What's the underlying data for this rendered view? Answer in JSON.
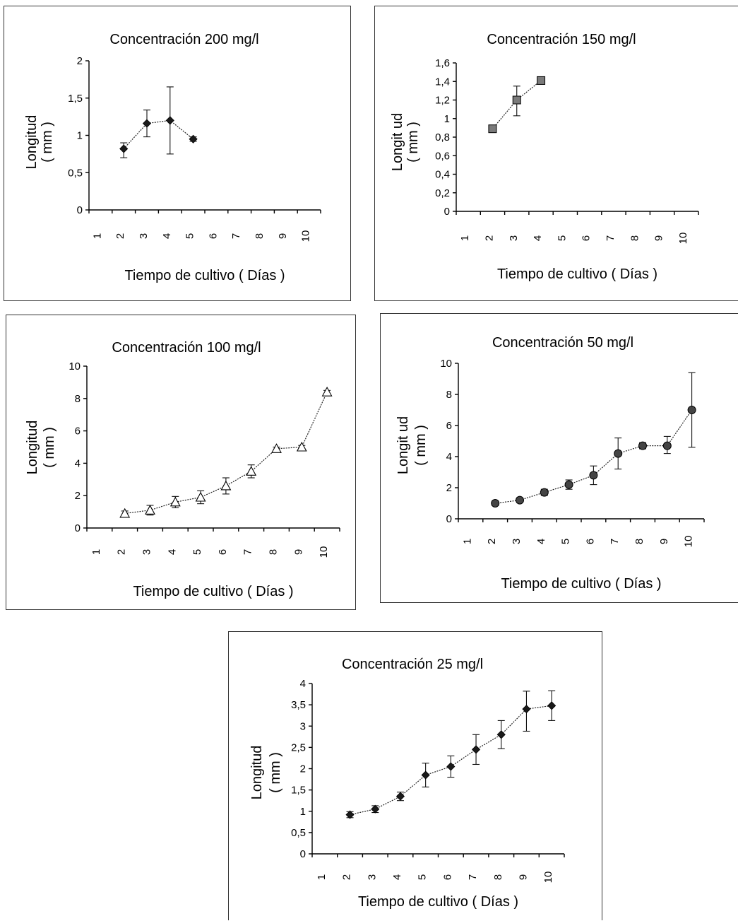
{
  "chart_data": [
    {
      "type": "line",
      "title": "Concentración 200 mg/l",
      "xlabel": "Tiempo de cultivo ( Días )",
      "ylabel": [
        "Longitud",
        "( mm )"
      ],
      "categories": [
        "1",
        "2",
        "3",
        "4",
        "5",
        "6",
        "7",
        "8",
        "9",
        "10"
      ],
      "ylim": [
        0,
        2
      ],
      "yticks": [
        "0",
        "0,5",
        "1",
        "1,5",
        "2"
      ],
      "marker": "diamond",
      "x": [
        2,
        3,
        4,
        5
      ],
      "values": [
        0.82,
        1.16,
        1.2,
        0.95
      ],
      "err_low": [
        0.12,
        0.18,
        0.45,
        0.03
      ],
      "err_high": [
        0.08,
        0.18,
        0.45,
        0.03
      ]
    },
    {
      "type": "line",
      "title": "Concentración 150 mg/l",
      "xlabel": "Tiempo de cultivo ( Días )",
      "ylabel": [
        "Longit ud",
        "( mm )"
      ],
      "categories": [
        "1",
        "2",
        "3",
        "4",
        "5",
        "6",
        "7",
        "8",
        "9",
        "10"
      ],
      "ylim": [
        0,
        1.6
      ],
      "yticks": [
        "0",
        "0,2",
        "0,4",
        "0,6",
        "0,8",
        "1",
        "1,2",
        "1,4",
        "1,6"
      ],
      "marker": "square",
      "x": [
        2,
        3,
        4
      ],
      "values": [
        0.89,
        1.2,
        1.41
      ],
      "err_low": [
        0.03,
        0.17,
        0.02
      ],
      "err_high": [
        0.03,
        0.15,
        0.02
      ]
    },
    {
      "type": "line",
      "title": "Concentración 100 mg/l",
      "xlabel": "Tiempo de cultivo ( Días )",
      "ylabel": [
        "Longitud",
        "( mm )"
      ],
      "categories": [
        "1",
        "2",
        "3",
        "4",
        "5",
        "6",
        "7",
        "8",
        "9",
        "10"
      ],
      "ylim": [
        0,
        10
      ],
      "yticks": [
        "0",
        "2",
        "4",
        "6",
        "8",
        "10"
      ],
      "marker": "triangle",
      "x": [
        2,
        3,
        4,
        5,
        6,
        7,
        8,
        9,
        10
      ],
      "values": [
        0.9,
        1.1,
        1.6,
        1.9,
        2.6,
        3.5,
        4.9,
        5.0,
        8.4
      ],
      "err_low": [
        0.15,
        0.3,
        0.35,
        0.4,
        0.5,
        0.4,
        0.1,
        0.1,
        0.1
      ],
      "err_high": [
        0.15,
        0.3,
        0.35,
        0.4,
        0.5,
        0.4,
        0.1,
        0.1,
        0.1
      ]
    },
    {
      "type": "line",
      "title": "Concentración 50 mg/l",
      "xlabel": "Tiempo de cultivo ( Días )",
      "ylabel": [
        "Longit ud",
        "( mm )"
      ],
      "categories": [
        "1",
        "2",
        "3",
        "4",
        "5",
        "6",
        "7",
        "8",
        "9",
        "10"
      ],
      "ylim": [
        0,
        10
      ],
      "yticks": [
        "0",
        "2",
        "4",
        "6",
        "8",
        "10"
      ],
      "marker": "circle",
      "x": [
        2,
        3,
        4,
        5,
        6,
        7,
        8,
        9,
        10
      ],
      "values": [
        1.0,
        1.2,
        1.7,
        2.2,
        2.8,
        4.2,
        4.7,
        4.7,
        7.0
      ],
      "err_low": [
        0.15,
        0.15,
        0.2,
        0.3,
        0.6,
        1.0,
        0.2,
        0.5,
        2.4
      ],
      "err_high": [
        0.15,
        0.15,
        0.2,
        0.3,
        0.6,
        1.0,
        0.2,
        0.6,
        2.4
      ]
    },
    {
      "type": "line",
      "title": "Concentración 25 mg/l",
      "xlabel": "Tiempo de cultivo ( Días )",
      "ylabel": [
        "Longitud",
        "( mm )"
      ],
      "categories": [
        "1",
        "2",
        "3",
        "4",
        "5",
        "6",
        "7",
        "8",
        "9",
        "10"
      ],
      "ylim": [
        0,
        4
      ],
      "yticks": [
        "0",
        "0,5",
        "1",
        "1,5",
        "2",
        "2,5",
        "3",
        "3,5",
        "4"
      ],
      "marker": "diamond",
      "x": [
        2,
        3,
        4,
        5,
        6,
        7,
        8,
        9,
        10
      ],
      "values": [
        0.92,
        1.05,
        1.35,
        1.85,
        2.05,
        2.45,
        2.8,
        3.4,
        3.48
      ],
      "err_low": [
        0.07,
        0.08,
        0.1,
        0.28,
        0.25,
        0.35,
        0.33,
        0.52,
        0.35
      ],
      "err_high": [
        0.07,
        0.08,
        0.1,
        0.28,
        0.25,
        0.35,
        0.33,
        0.42,
        0.35
      ]
    }
  ]
}
